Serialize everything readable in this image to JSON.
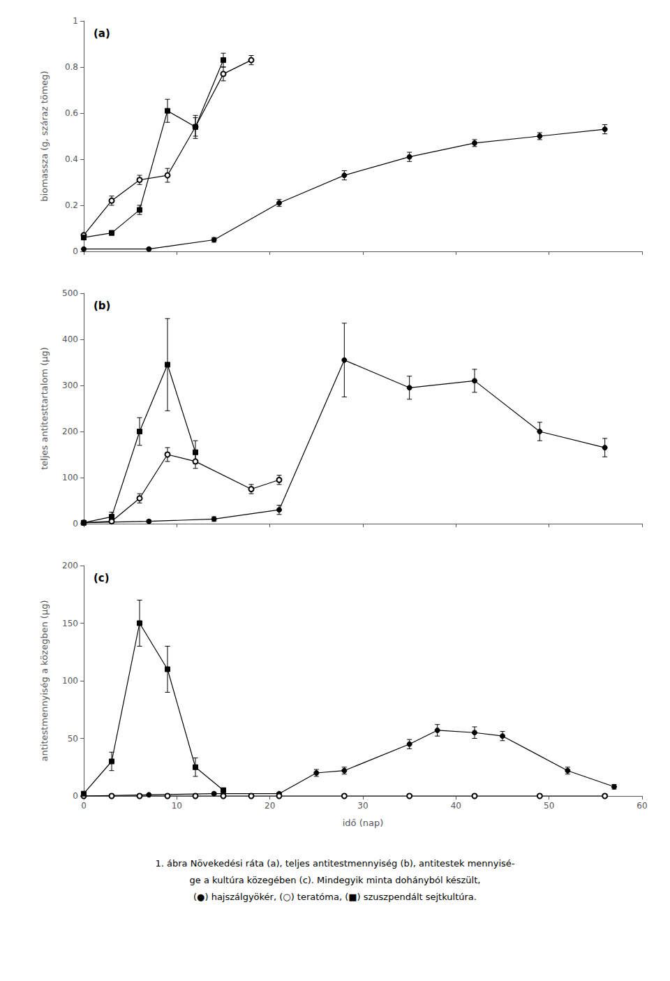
{
  "chart_data": [
    {
      "type": "line",
      "annotations": [
        "(a)"
      ],
      "ylabel": "biomassza (g, száraz tömeg)",
      "xlim": [
        0,
        60
      ],
      "xticks": [
        0,
        10,
        20,
        30,
        40,
        50,
        60
      ],
      "ylim": [
        0,
        1
      ],
      "yticks": [
        0,
        0.2,
        0.4,
        0.6,
        0.8,
        1
      ],
      "grid": false,
      "tick_labels": "y",
      "series": [
        {
          "color": "#000000",
          "marker": "circle",
          "x": [
            0,
            7,
            14,
            21,
            28,
            35,
            42,
            49,
            56
          ],
          "values": [
            0.01,
            0.01,
            0.05,
            0.21,
            0.33,
            0.41,
            0.47,
            0.5,
            0.53
          ],
          "yerr": [
            0.005,
            0.005,
            0.01,
            0.015,
            0.02,
            0.02,
            0.015,
            0.015,
            0.02
          ]
        },
        {
          "color": "#000000",
          "marker": "open_circle",
          "x": [
            0,
            3,
            6,
            9,
            12,
            15,
            18
          ],
          "values": [
            0.07,
            0.22,
            0.31,
            0.33,
            0.54,
            0.77,
            0.83
          ],
          "yerr": [
            0.005,
            0.02,
            0.02,
            0.03,
            0.04,
            0.03,
            0.02
          ]
        },
        {
          "color": "#000000",
          "marker": "square",
          "x": [
            0,
            3,
            6,
            9,
            12,
            15
          ],
          "values": [
            0.06,
            0.08,
            0.18,
            0.61,
            0.54,
            0.83
          ],
          "yerr": [
            0.005,
            0.01,
            0.02,
            0.05,
            0.05,
            0.03
          ]
        }
      ]
    },
    {
      "type": "line",
      "annotations": [
        "(b)"
      ],
      "ylabel": "teljes antitesttartalom (μg)",
      "xlim": [
        0,
        60
      ],
      "xticks": [
        0,
        10,
        20,
        30,
        40,
        50,
        60
      ],
      "ylim": [
        0,
        500
      ],
      "yticks": [
        0,
        100,
        200,
        300,
        400,
        500
      ],
      "grid": false,
      "tick_labels": "y",
      "series": [
        {
          "color": "#000000",
          "marker": "circle",
          "x": [
            0,
            7,
            14,
            21,
            28,
            35,
            42,
            49,
            56
          ],
          "values": [
            2,
            5,
            10,
            30,
            355,
            295,
            310,
            200,
            165
          ],
          "yerr": [
            1,
            3,
            5,
            10,
            80,
            25,
            25,
            20,
            20
          ]
        },
        {
          "color": "#000000",
          "marker": "open_circle",
          "x": [
            0,
            3,
            6,
            9,
            12,
            18,
            21
          ],
          "values": [
            2,
            5,
            55,
            150,
            135,
            75,
            95
          ],
          "yerr": [
            1,
            3,
            10,
            15,
            15,
            10,
            10
          ]
        },
        {
          "color": "#000000",
          "marker": "square",
          "x": [
            0,
            3,
            6,
            9,
            12
          ],
          "values": [
            2,
            15,
            200,
            345,
            155
          ],
          "yerr": [
            1,
            10,
            30,
            100,
            25
          ]
        }
      ]
    },
    {
      "type": "line",
      "annotations": [
        "(c)"
      ],
      "xlabel": "idő (nap)",
      "ylabel": "antitestmennyiség a közegben (μg)",
      "xlim": [
        0,
        60
      ],
      "xticks": [
        0,
        10,
        20,
        30,
        40,
        50,
        60
      ],
      "ylim": [
        0,
        200
      ],
      "yticks": [
        0,
        50,
        100,
        150,
        200
      ],
      "grid": false,
      "series": [
        {
          "color": "#000000",
          "marker": "circle",
          "x": [
            0,
            7,
            14,
            21,
            25,
            28,
            35,
            38,
            42,
            45,
            52,
            57
          ],
          "values": [
            0,
            1,
            2,
            2,
            20,
            22,
            45,
            57,
            55,
            52,
            22,
            8
          ],
          "yerr": [
            0,
            0.5,
            1,
            1,
            3,
            3,
            4,
            5,
            5,
            4,
            3,
            2
          ]
        },
        {
          "color": "#000000",
          "marker": "open_circle",
          "x": [
            0,
            3,
            6,
            9,
            12,
            15,
            18,
            21,
            28,
            35,
            42,
            49,
            56
          ],
          "values": [
            0,
            0,
            0,
            0,
            0,
            0,
            0,
            0,
            0,
            0,
            0,
            0,
            0
          ],
          "yerr": [
            0,
            0,
            0,
            0,
            0,
            0,
            0,
            0,
            0,
            0,
            0,
            0,
            0
          ]
        },
        {
          "color": "#000000",
          "marker": "square",
          "x": [
            0,
            3,
            6,
            9,
            12,
            15
          ],
          "values": [
            2,
            30,
            150,
            110,
            25,
            5
          ],
          "yerr": [
            1,
            8,
            20,
            20,
            8,
            2
          ]
        }
      ]
    }
  ],
  "caption": [
    "1. ábra Növekedési ráta (a), teljes antitestmennyiség (b), antitestek mennyisé-",
    "ge a kultúra közegében (c). Mindegyik minta dohányból készült,",
    "(●) hajszálgyökér, (○) teratóma, (■) szuszpendált sejtkultúra."
  ]
}
